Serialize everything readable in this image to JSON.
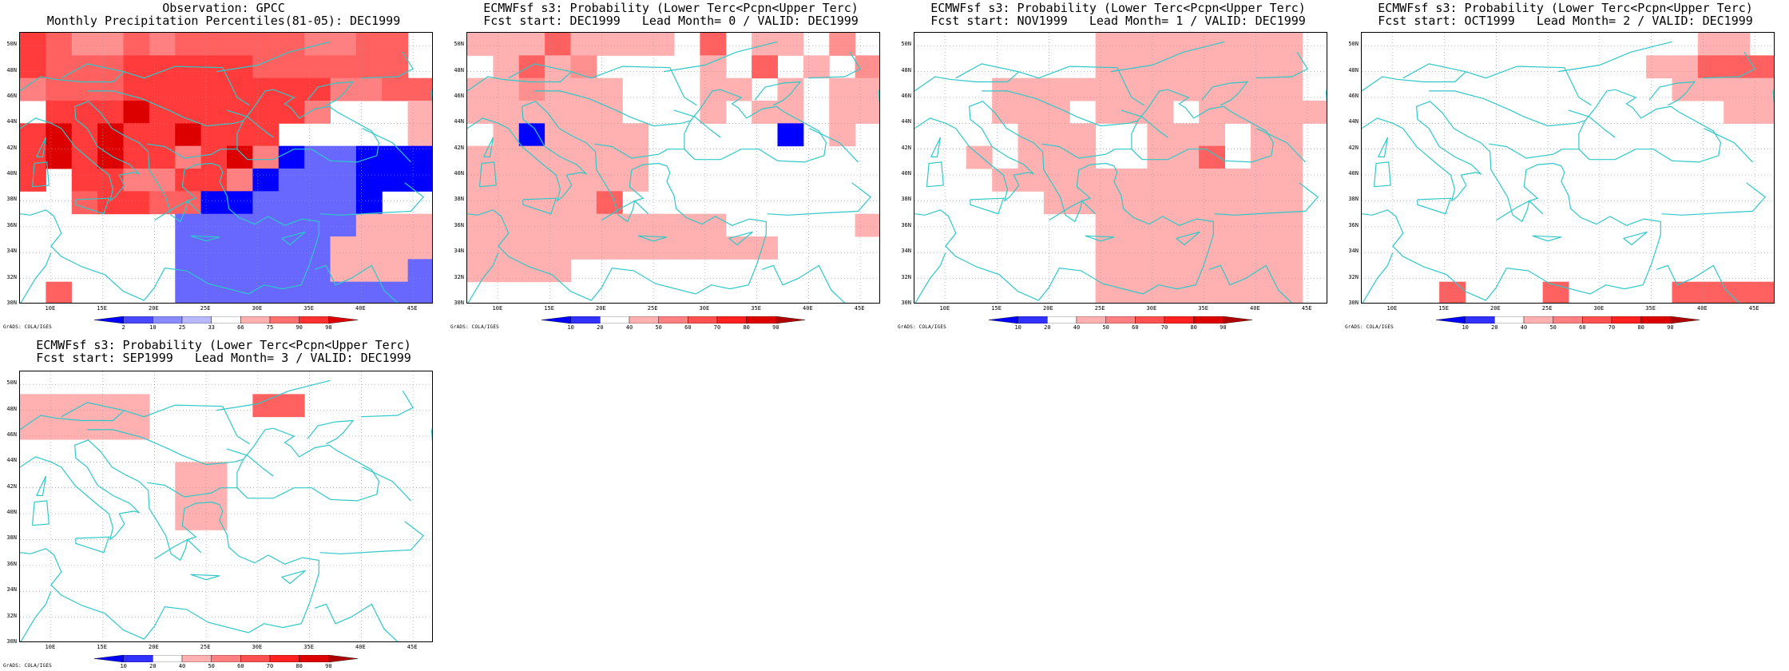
{
  "credit": "GrADS: COLA/IGES",
  "colors": {
    "coast": "#2ec8c8",
    "grid": "#9a9a9a",
    "frame": "#000000"
  },
  "lat_labels": [
    "30N",
    "32N",
    "34N",
    "36N",
    "38N",
    "40N",
    "42N",
    "44N",
    "46N",
    "48N",
    "50N"
  ],
  "lon_labels": [
    "10E",
    "15E",
    "20E",
    "25E",
    "30E",
    "35E",
    "40E",
    "45E"
  ],
  "colorbars": {
    "obs": {
      "levels": [
        "2",
        "10",
        "25",
        "33",
        "66",
        "75",
        "90",
        "98"
      ],
      "colors": [
        "#0000ff",
        "#4848ff",
        "#8a8aff",
        "#b9b9ff",
        "#ffffff",
        "#ffb0b0",
        "#ff7070",
        "#ff3030",
        "#dd0000"
      ]
    },
    "prob": {
      "levels": [
        "10",
        "20",
        "40",
        "50",
        "60",
        "70",
        "80",
        "90"
      ],
      "colors": [
        "#0000ff",
        "#3030ff",
        "#ffffff",
        "#ffb0b0",
        "#ff8080",
        "#ff5050",
        "#ff2020",
        "#dd0000",
        "#b00000"
      ]
    }
  },
  "panels": [
    {
      "title1": "Observation: GPCC",
      "title2": "Monthly Precipitation Percentiles(81-05): DEC1999",
      "cbar": "obs",
      "grid": [
        "7544565555566550",
        "7555777775555550",
        "6555777777776655",
        "0777877777760003",
        "7878778777000003",
        "7878776786122111",
        "7077667761222111",
        "0057755112222100",
        "0000002222222333",
        "0000002222223333",
        "0000002222223332",
        "0500002222222222"
      ]
    },
    {
      "title1": "ECMWFsf s3: Probability (Lower Terc<Pcpn<Upper Terc)",
      "title2": "Fcst start: DEC1999   Lead Month= 0 / VALID: DEC1999",
      "cbar": "prob",
      "grid": [
        "3335333305033040",
        "0353400003050304",
        "3343330003303033",
        "3333330003033033",
        "0313333000001030",
        "3333333000000000",
        "3333333000000000",
        "3333350000000000",
        "3333333333000003",
        "3333333333330000",
        "3333000000000000",
        "0000000000000000"
      ]
    },
    {
      "title1": "ECMWFsf s3: Probability (Lower Terc<Pcpn<Upper Terc)",
      "title2": "Fcst start: NOV1999   Lead Month= 1 / VALID: DEC1999",
      "cbar": "prob",
      "grid": [
        "0000000333333330",
        "0000000333333330",
        "0003333333333330",
        "0003330333033333",
        "0000333003330330",
        "0030333003350330",
        "0003333333333330",
        "0000033333333330",
        "0000000333333330",
        "0000000333333330",
        "0000000333333330",
        "0000000333333330"
      ]
    },
    {
      "title1": "ECMWFsf s3: Probability (Lower Terc<Pcpn<Upper Terc)",
      "title2": "Fcst start: OCT1999   Lead Month= 2 / VALID: DEC1999",
      "cbar": "prob",
      "grid": [
        "0000000000000330",
        "0000000000033555",
        "0000000000003333",
        "0000000000000033",
        "0000000000000000",
        "0000000000000000",
        "0000000000000000",
        "0000000000000000",
        "0000000000000000",
        "0000000000000000",
        "0000000000000000",
        "0005000500005555"
      ]
    },
    {
      "title1": "ECMWFsf s3: Probability (Lower Terc<Pcpn<Upper Terc)",
      "title2": "Fcst start: SEP1999   Lead Month= 3 / VALID: DEC1999",
      "cbar": "prob",
      "grid": [
        "0000000000000000",
        "3333300005500000",
        "3333300000000000",
        "0000000000000000",
        "0000003300000000",
        "0000003300000000",
        "0000003300000000",
        "0000000000000000",
        "0000000000000000",
        "0000000000000000",
        "0000000000000000",
        "0000000000000000"
      ]
    }
  ]
}
